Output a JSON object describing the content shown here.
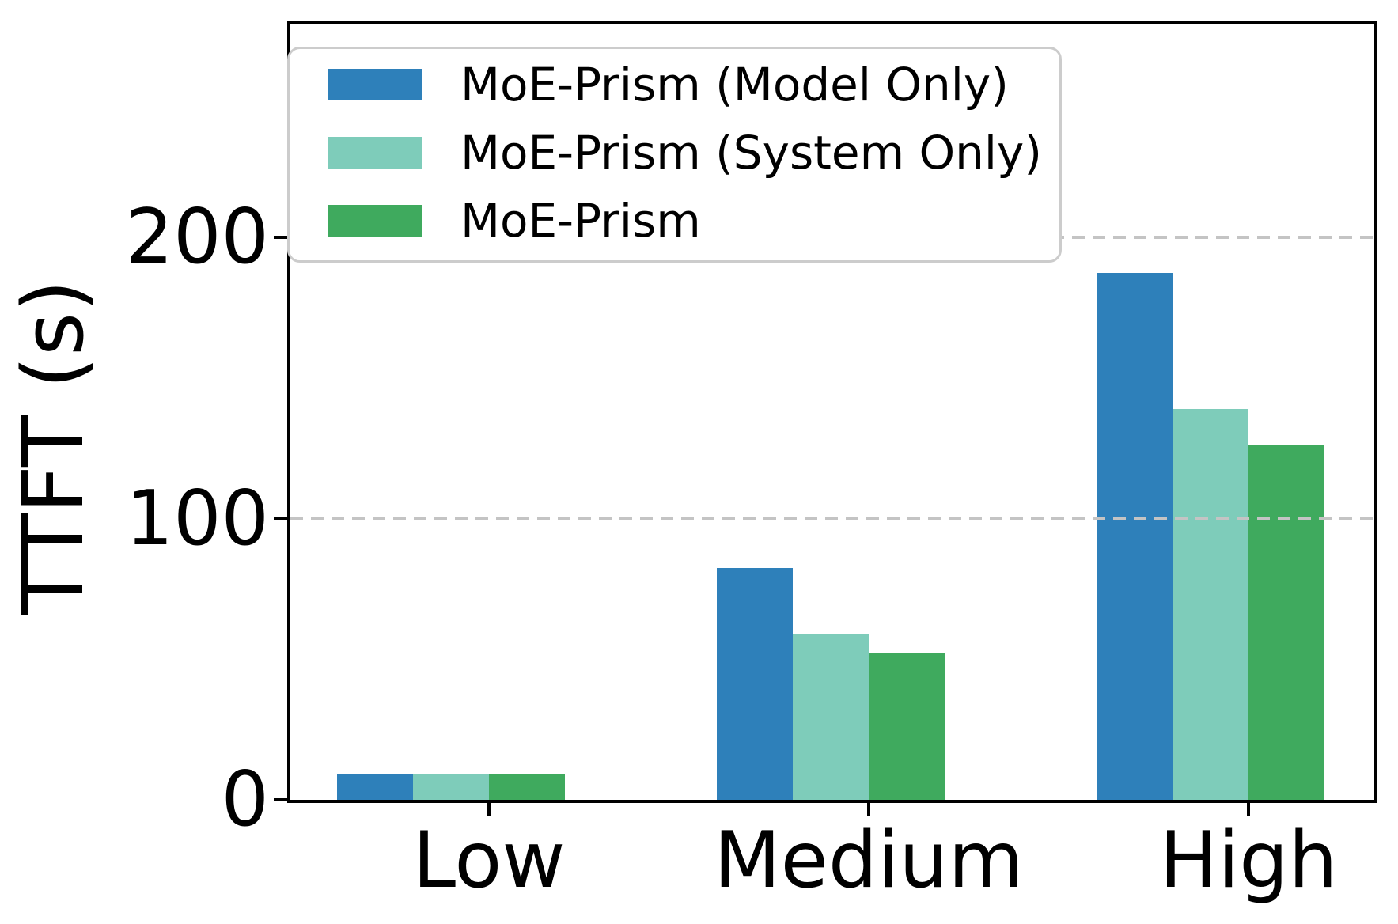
{
  "chart_data": {
    "type": "bar",
    "title": "",
    "xlabel": "",
    "ylabel": "TTFT (s)",
    "categories": [
      "Low",
      "Medium",
      "High"
    ],
    "series": [
      {
        "name": "MoE-Prism (Model Only)",
        "color": "#2e80ba",
        "values": [
          9.3,
          82.3,
          187.4
        ]
      },
      {
        "name": "MoE-Prism (System Only)",
        "color": "#7eccba",
        "values": [
          9.2,
          58.7,
          139.0
        ]
      },
      {
        "name": "MoE-Prism",
        "color": "#3faa5e",
        "values": [
          9.0,
          52.2,
          126.1
        ]
      }
    ],
    "ylim": [
      0,
      276
    ],
    "yticks": [
      {
        "value": 0,
        "label": "0"
      },
      {
        "value": 100,
        "label": "100"
      },
      {
        "value": 200,
        "label": "200"
      }
    ],
    "grid": {
      "axis": "y",
      "style": "dashed",
      "color": "#c4c4c4",
      "values": [
        100,
        200
      ],
      "above_bars": true
    },
    "legend": {
      "position": "upper-left"
    }
  }
}
